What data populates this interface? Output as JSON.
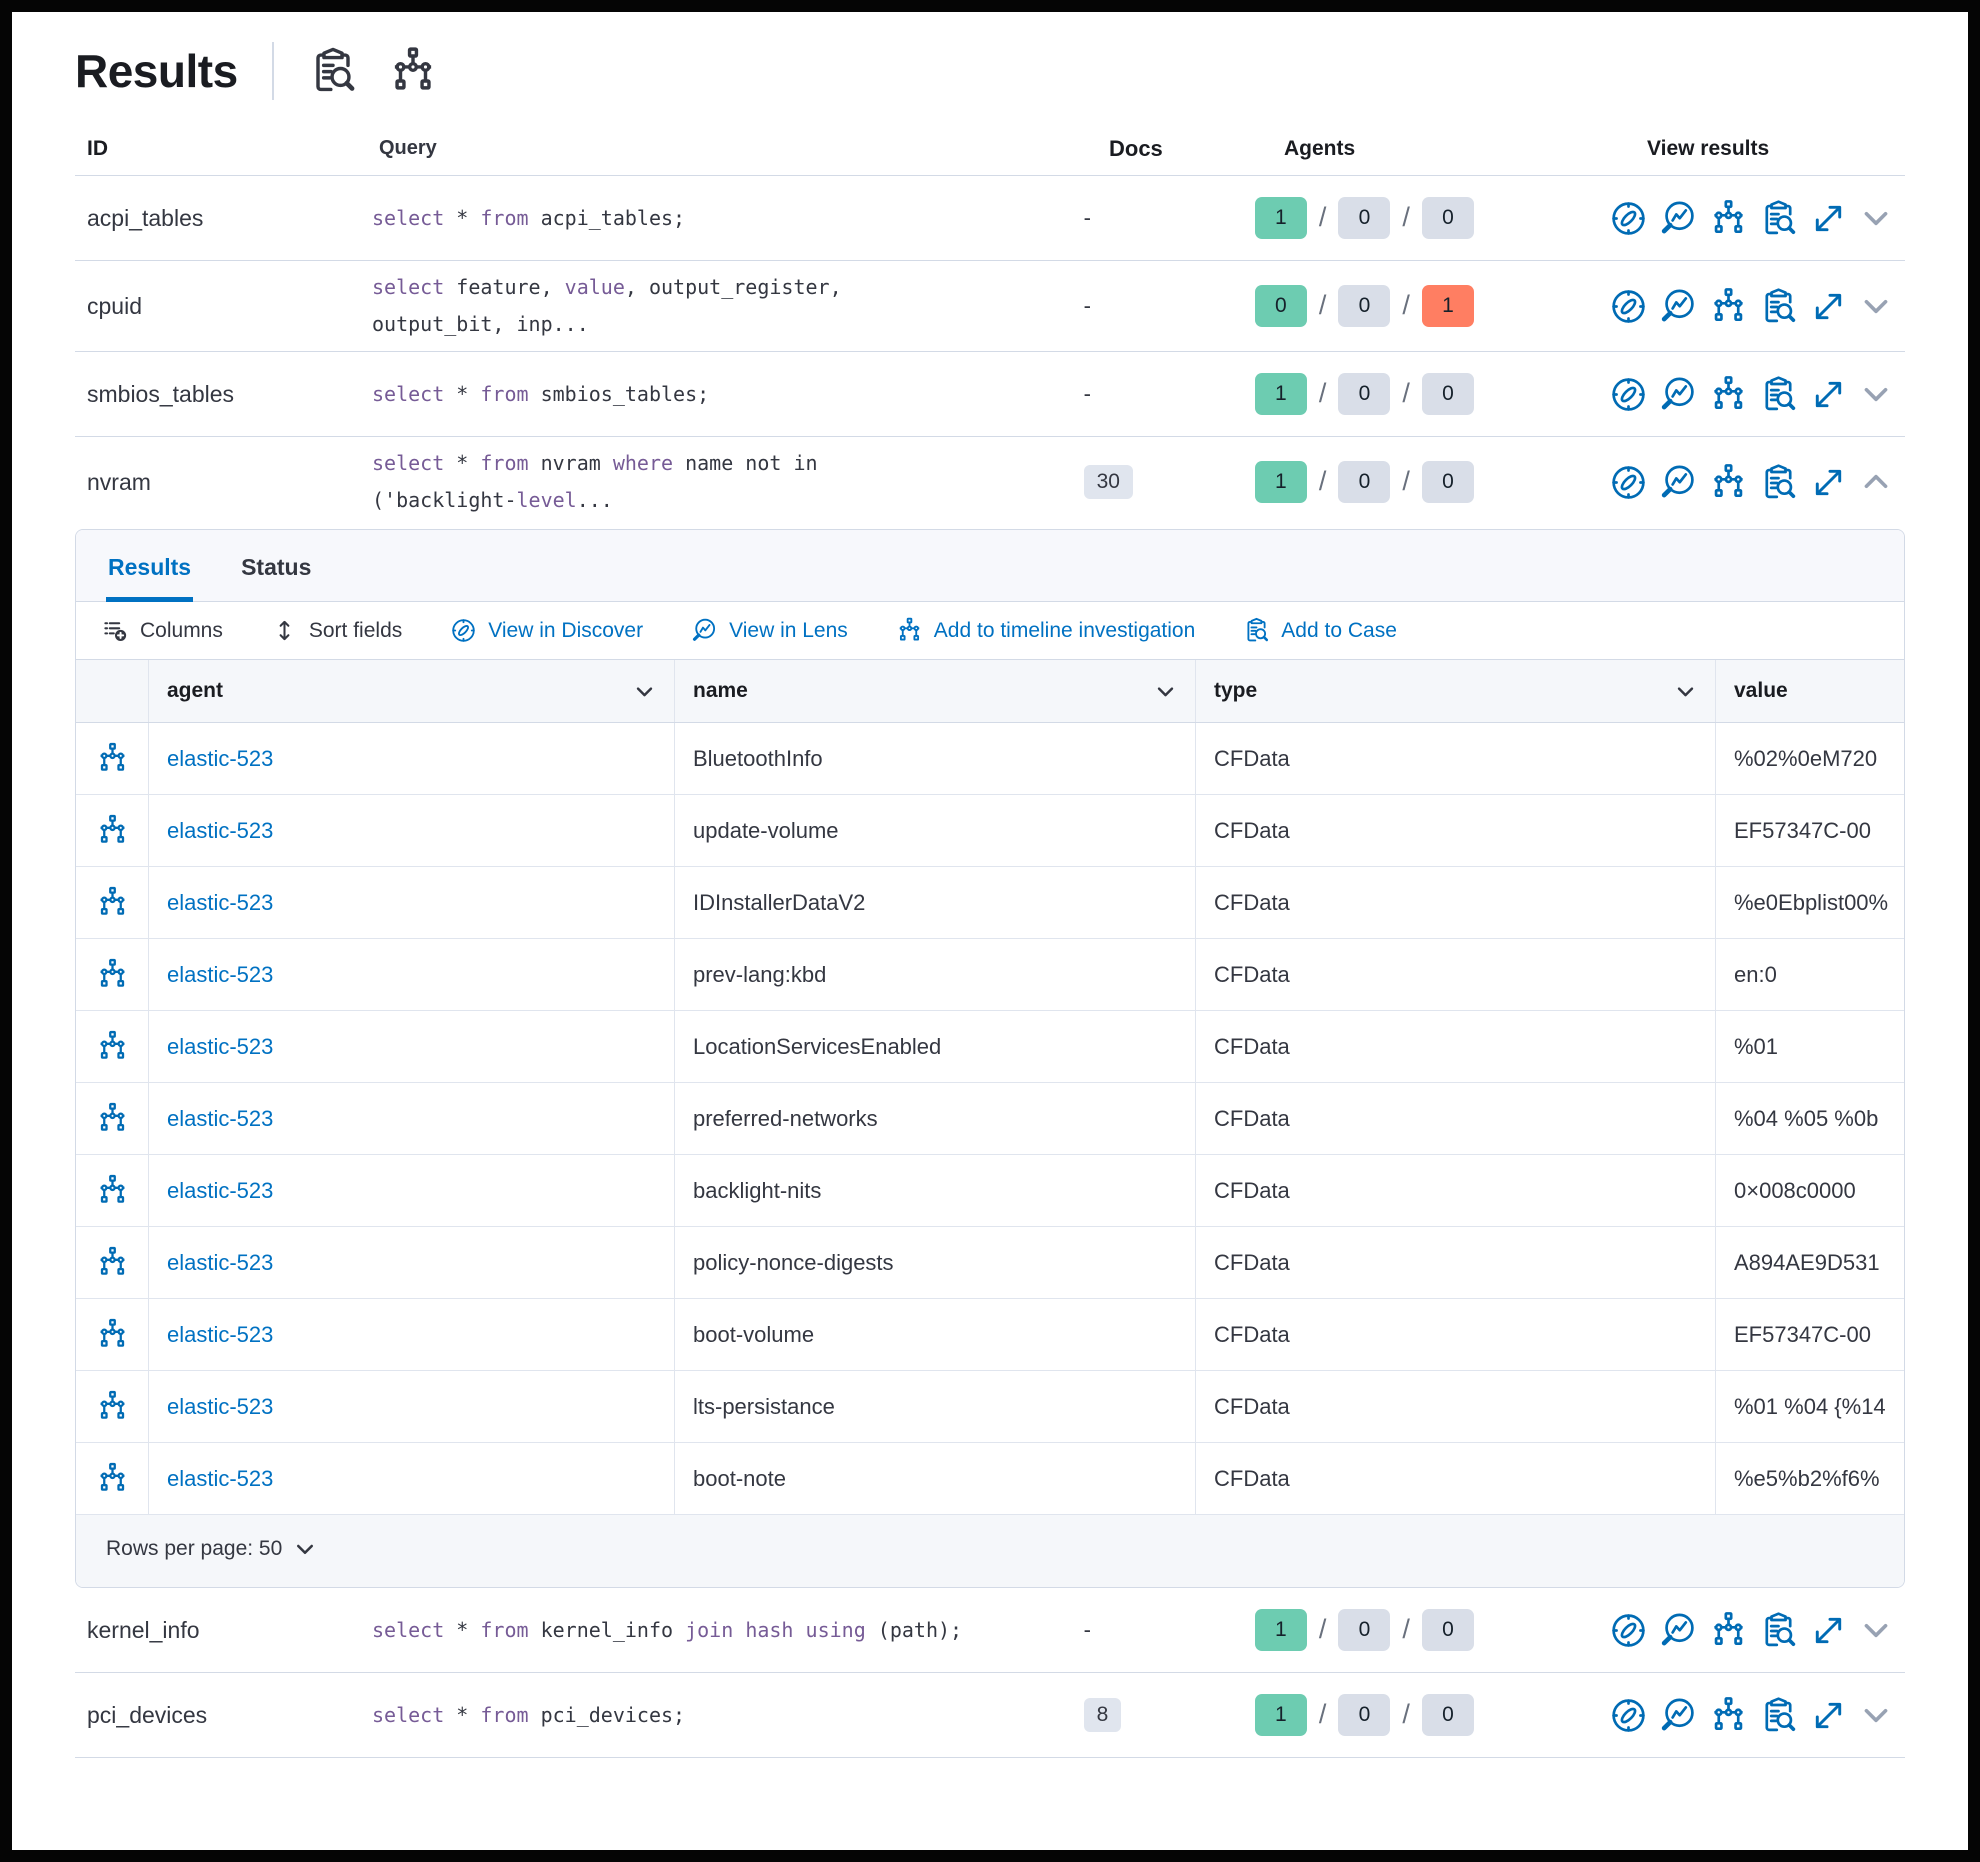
{
  "header": {
    "title": "Results",
    "icons": [
      "inspect-icon",
      "timeline-icon"
    ]
  },
  "colors": {
    "primary_blue": "#0071c2",
    "icon_blue": "#006bb4",
    "success_green": "#6dccb1",
    "danger_red": "#ff7e62",
    "neutral_badge_gray": "#d9dee8",
    "docs_badge_gray": "#e0e5ee",
    "keyword_purple": "#765b96",
    "text_dark": "#343741",
    "border_gray": "#d3dae6"
  },
  "results_table": {
    "columns": {
      "id": "ID",
      "query": "Query",
      "docs": "Docs",
      "agents": "Agents",
      "view": "View results"
    },
    "separator": "/",
    "empty_docs": "-",
    "action_icons": [
      "discover-icon",
      "lens-icon",
      "timeline-icon",
      "inspect-icon",
      "expand-icon"
    ],
    "rows": [
      {
        "id": "acpi_tables",
        "docs": "-",
        "docs_badge": false,
        "expanded": false,
        "agents": [
          {
            "value": "1",
            "color": "green"
          },
          {
            "value": "0",
            "color": "gray"
          },
          {
            "value": "0",
            "color": "gray"
          }
        ],
        "query": [
          [
            {
              "t": "select",
              "kw": true
            },
            {
              "t": " * "
            },
            {
              "t": "from",
              "kw": true
            },
            {
              "t": " acpi_tables;"
            }
          ]
        ]
      },
      {
        "id": "cpuid",
        "docs": "-",
        "docs_badge": false,
        "expanded": false,
        "agents": [
          {
            "value": "0",
            "color": "green"
          },
          {
            "value": "0",
            "color": "gray"
          },
          {
            "value": "1",
            "color": "red"
          }
        ],
        "query": [
          [
            {
              "t": "select",
              "kw": true
            },
            {
              "t": " feature, "
            },
            {
              "t": "value",
              "kw": true
            },
            {
              "t": ", output_register,"
            }
          ],
          [
            {
              "t": "output_bit, inp..."
            }
          ]
        ]
      },
      {
        "id": "smbios_tables",
        "docs": "-",
        "docs_badge": false,
        "expanded": false,
        "agents": [
          {
            "value": "1",
            "color": "green"
          },
          {
            "value": "0",
            "color": "gray"
          },
          {
            "value": "0",
            "color": "gray"
          }
        ],
        "query": [
          [
            {
              "t": "select",
              "kw": true
            },
            {
              "t": " * "
            },
            {
              "t": "from",
              "kw": true
            },
            {
              "t": " smbios_tables;"
            }
          ]
        ]
      },
      {
        "id": "nvram",
        "docs": "30",
        "docs_badge": true,
        "expanded": true,
        "agents": [
          {
            "value": "1",
            "color": "green"
          },
          {
            "value": "0",
            "color": "gray"
          },
          {
            "value": "0",
            "color": "gray"
          }
        ],
        "query": [
          [
            {
              "t": "select",
              "kw": true
            },
            {
              "t": " * "
            },
            {
              "t": "from",
              "kw": true
            },
            {
              "t": " nvram "
            },
            {
              "t": "where",
              "kw": true
            },
            {
              "t": " name not in"
            }
          ],
          [
            {
              "t": "('backlight-"
            },
            {
              "t": "level",
              "kw": true
            },
            {
              "t": "..."
            }
          ]
        ]
      },
      {
        "id": "kernel_info",
        "docs": "-",
        "docs_badge": false,
        "expanded": false,
        "agents": [
          {
            "value": "1",
            "color": "green"
          },
          {
            "value": "0",
            "color": "gray"
          },
          {
            "value": "0",
            "color": "gray"
          }
        ],
        "query": [
          [
            {
              "t": "select",
              "kw": true
            },
            {
              "t": " * "
            },
            {
              "t": "from",
              "kw": true
            },
            {
              "t": " kernel_info "
            },
            {
              "t": "join",
              "kw": true
            },
            {
              "t": " "
            },
            {
              "t": "hash",
              "kw": true
            },
            {
              "t": " "
            },
            {
              "t": "using",
              "kw": true
            },
            {
              "t": " (path);"
            }
          ]
        ]
      },
      {
        "id": "pci_devices",
        "docs": "8",
        "docs_badge": true,
        "expanded": false,
        "agents": [
          {
            "value": "1",
            "color": "green"
          },
          {
            "value": "0",
            "color": "gray"
          },
          {
            "value": "0",
            "color": "gray"
          }
        ],
        "query": [
          [
            {
              "t": "select",
              "kw": true
            },
            {
              "t": " * "
            },
            {
              "t": "from",
              "kw": true
            },
            {
              "t": " pci_devices;"
            }
          ]
        ]
      }
    ]
  },
  "panel": {
    "tabs": [
      {
        "label": "Results",
        "active": true
      },
      {
        "label": "Status",
        "active": false
      }
    ],
    "toolbar": [
      {
        "label": "Columns",
        "icon": "columns-icon",
        "style": "dark"
      },
      {
        "label": "Sort fields",
        "icon": "sort-icon",
        "style": "dark"
      },
      {
        "label": "View in Discover",
        "icon": "discover-icon",
        "style": "blue"
      },
      {
        "label": "View in Lens",
        "icon": "lens-icon",
        "style": "blue"
      },
      {
        "label": "Add to timeline investigation",
        "icon": "timeline-icon",
        "style": "blue"
      },
      {
        "label": "Add to Case",
        "icon": "inspect-icon",
        "style": "blue"
      }
    ],
    "grid": {
      "columns": [
        {
          "key": "agent",
          "label": "agent",
          "chevron": true
        },
        {
          "key": "name",
          "label": "name",
          "chevron": true
        },
        {
          "key": "type",
          "label": "type",
          "chevron": true
        },
        {
          "key": "value",
          "label": "value",
          "chevron": false
        }
      ],
      "rows": [
        {
          "agent": "elastic-523",
          "name": "BluetoothInfo",
          "type": "CFData",
          "value": "%02%0eM720"
        },
        {
          "agent": "elastic-523",
          "name": "update-volume",
          "type": "CFData",
          "value": "EF57347C-00"
        },
        {
          "agent": "elastic-523",
          "name": "IDInstallerDataV2",
          "type": "CFData",
          "value": "%e0Ebplist00%"
        },
        {
          "agent": "elastic-523",
          "name": "prev-lang:kbd",
          "type": "CFData",
          "value": "en:0"
        },
        {
          "agent": "elastic-523",
          "name": "LocationServicesEnabled",
          "type": "CFData",
          "value": "%01"
        },
        {
          "agent": "elastic-523",
          "name": "preferred-networks",
          "type": "CFData",
          "value": "%04 %05 %0b"
        },
        {
          "agent": "elastic-523",
          "name": "backlight-nits",
          "type": "CFData",
          "value": "0×008c0000"
        },
        {
          "agent": "elastic-523",
          "name": "policy-nonce-digests",
          "type": "CFData",
          "value": "A894AE9D531"
        },
        {
          "agent": "elastic-523",
          "name": "boot-volume",
          "type": "CFData",
          "value": "EF57347C-00"
        },
        {
          "agent": "elastic-523",
          "name": "lts-persistance",
          "type": "CFData",
          "value": "%01 %04 {%14"
        },
        {
          "agent": "elastic-523",
          "name": "boot-note",
          "type": "CFData",
          "value": "%e5%b2%f6%"
        }
      ]
    },
    "footer": {
      "rows_per_page_label": "Rows per page: 50"
    }
  }
}
